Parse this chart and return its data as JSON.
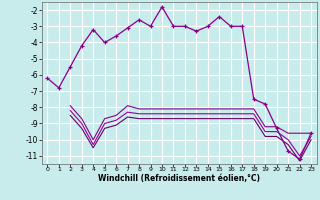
{
  "xlabel": "Windchill (Refroidissement éolien,°C)",
  "bg_color": "#c8ecec",
  "grid_color": "#b0d8d8",
  "xlim": [
    -0.5,
    23.5
  ],
  "ylim": [
    -11.5,
    -1.5
  ],
  "yticks": [
    -11,
    -10,
    -9,
    -8,
    -7,
    -6,
    -5,
    -4,
    -3,
    -2
  ],
  "xticks": [
    0,
    1,
    2,
    3,
    4,
    5,
    6,
    7,
    8,
    9,
    10,
    11,
    12,
    13,
    14,
    15,
    16,
    17,
    18,
    19,
    20,
    21,
    22,
    23
  ],
  "lc1": "#880088",
  "lc2": "#880088",
  "lc3": "#990099",
  "lc4": "#660066",
  "s1_x": [
    0,
    1,
    2,
    3,
    4,
    5,
    6,
    7,
    8,
    9,
    10,
    11,
    12,
    13,
    14,
    15,
    16,
    17,
    18,
    19,
    20,
    21,
    22,
    23
  ],
  "s1_y": [
    -6.2,
    -6.8,
    -5.5,
    -4.2,
    -3.2,
    -4.0,
    -3.6,
    -3.1,
    -2.6,
    -3.0,
    -1.8,
    -3.0,
    -3.0,
    -3.3,
    -3.0,
    -2.4,
    -3.0,
    -3.0,
    -7.5,
    -7.8,
    -9.3,
    -10.7,
    -11.2,
    -9.6
  ],
  "s2_x": [
    2,
    3,
    4,
    5,
    6,
    7,
    8,
    9,
    10,
    11,
    12,
    13,
    14,
    15,
    16,
    17,
    18,
    19,
    20,
    21,
    22,
    23
  ],
  "s2_y": [
    -7.9,
    -8.7,
    -10.0,
    -8.7,
    -8.5,
    -7.9,
    -8.1,
    -8.1,
    -8.1,
    -8.1,
    -8.1,
    -8.1,
    -8.1,
    -8.1,
    -8.1,
    -8.1,
    -8.1,
    -9.2,
    -9.2,
    -9.6,
    -9.6,
    -9.6
  ],
  "s3_x": [
    2,
    3,
    4,
    5,
    6,
    7,
    8,
    9,
    10,
    11,
    12,
    13,
    14,
    15,
    16,
    17,
    18,
    19,
    20,
    21,
    22,
    23
  ],
  "s3_y": [
    -8.2,
    -9.0,
    -10.3,
    -9.0,
    -8.8,
    -8.3,
    -8.4,
    -8.4,
    -8.4,
    -8.4,
    -8.4,
    -8.4,
    -8.4,
    -8.4,
    -8.4,
    -8.4,
    -8.4,
    -9.5,
    -9.5,
    -10.0,
    -11.0,
    -9.8
  ],
  "s4_x": [
    2,
    3,
    4,
    5,
    6,
    7,
    8,
    9,
    10,
    11,
    12,
    13,
    14,
    15,
    16,
    17,
    18,
    19,
    20,
    21,
    22,
    23
  ],
  "s4_y": [
    -8.5,
    -9.3,
    -10.5,
    -9.3,
    -9.1,
    -8.6,
    -8.7,
    -8.7,
    -8.7,
    -8.7,
    -8.7,
    -8.7,
    -8.7,
    -8.7,
    -8.7,
    -8.7,
    -8.7,
    -9.8,
    -9.8,
    -10.3,
    -11.3,
    -10.0
  ]
}
